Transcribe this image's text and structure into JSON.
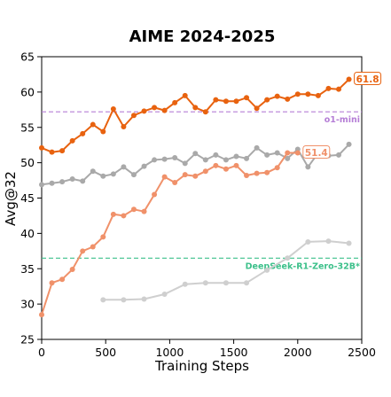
{
  "chart_data": {
    "type": "line",
    "title": "AIME 2024-2025",
    "xlabel": "Training Steps",
    "ylabel": "Avg@32",
    "xlim": [
      0,
      2500
    ],
    "ylim": [
      25,
      65
    ],
    "xticks": [
      0,
      500,
      1000,
      1500,
      2000,
      2500
    ],
    "yticks": [
      25,
      30,
      35,
      40,
      45,
      50,
      55,
      60,
      65
    ],
    "grid": false,
    "reference_lines": [
      {
        "label": "o1-mini",
        "y": 57.2,
        "color": "#b57ed6",
        "style": "dashed"
      },
      {
        "label": "DeepSeek-R1-Zero-32B*",
        "y": 36.5,
        "color": "#3cc08a",
        "style": "dashed"
      }
    ],
    "series": [
      {
        "color": "#e8620f",
        "end_label": "61.8",
        "x": [
          0,
          80,
          160,
          240,
          320,
          400,
          480,
          560,
          640,
          720,
          800,
          880,
          960,
          1040,
          1120,
          1200,
          1280,
          1360,
          1440,
          1520,
          1600,
          1680,
          1760,
          1840,
          1920,
          2000,
          2080,
          2160,
          2240,
          2320,
          2400
        ],
        "y": [
          52.1,
          51.5,
          51.7,
          53.1,
          54.1,
          55.4,
          54.4,
          57.6,
          55.1,
          56.7,
          57.3,
          57.8,
          57.4,
          58.5,
          59.5,
          57.8,
          57.2,
          58.9,
          58.7,
          58.7,
          59.2,
          57.7,
          58.9,
          59.4,
          59.0,
          59.7,
          59.7,
          59.5,
          60.5,
          60.4,
          61.8
        ]
      },
      {
        "color": "#f0916a",
        "end_label": "51.4",
        "x": [
          0,
          80,
          160,
          240,
          320,
          400,
          480,
          560,
          640,
          720,
          800,
          880,
          960,
          1040,
          1120,
          1200,
          1280,
          1360,
          1440,
          1520,
          1600,
          1680,
          1760,
          1840,
          1920,
          2000
        ],
        "y": [
          28.5,
          33.0,
          33.5,
          34.9,
          37.5,
          38.1,
          39.5,
          42.7,
          42.5,
          43.4,
          43.1,
          45.5,
          48.0,
          47.2,
          48.3,
          48.1,
          48.8,
          49.6,
          49.1,
          49.6,
          48.2,
          48.5,
          48.6,
          49.3,
          51.4,
          51.4
        ]
      },
      {
        "color": "#a9a9a9",
        "x": [
          0,
          80,
          160,
          240,
          320,
          400,
          480,
          560,
          640,
          720,
          800,
          880,
          960,
          1040,
          1120,
          1200,
          1280,
          1360,
          1440,
          1520,
          1600,
          1680,
          1760,
          1840,
          1920,
          2000,
          2080,
          2160,
          2240,
          2320,
          2400
        ],
        "y": [
          46.9,
          47.1,
          47.3,
          47.7,
          47.4,
          48.8,
          48.1,
          48.4,
          49.4,
          48.3,
          49.5,
          50.4,
          50.5,
          50.7,
          49.9,
          51.3,
          50.4,
          51.1,
          50.4,
          50.9,
          50.6,
          52.1,
          51.1,
          51.4,
          50.6,
          51.9,
          49.4,
          51.4,
          51.0,
          51.1,
          52.6
        ]
      },
      {
        "color": "#cfcfcf",
        "x": [
          480,
          640,
          800,
          960,
          1120,
          1280,
          1440,
          1600,
          1760,
          1920,
          2080,
          2240,
          2400
        ],
        "y": [
          30.6,
          30.6,
          30.7,
          31.4,
          32.8,
          33.0,
          33.0,
          33.0,
          34.8,
          36.5,
          38.8,
          38.9,
          38.6
        ]
      }
    ]
  }
}
